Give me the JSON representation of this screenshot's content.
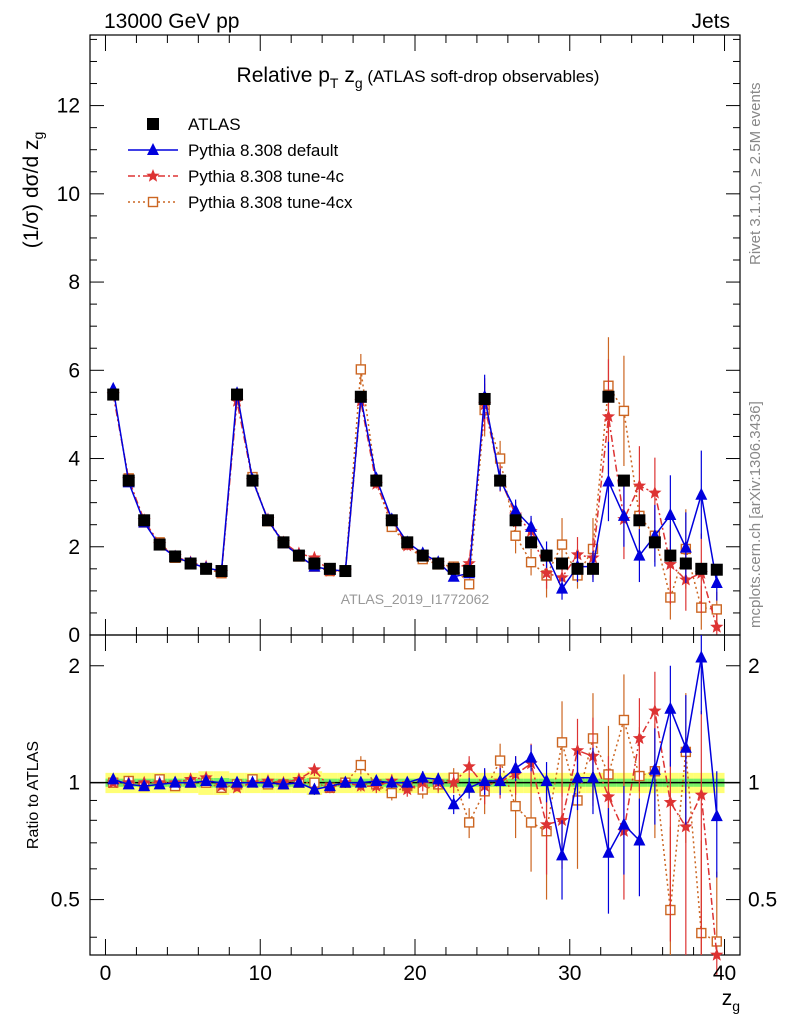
{
  "header": {
    "left": "13000 GeV pp",
    "right": "Jets"
  },
  "side_labels": {
    "rivet": "Rivet 3.1.10, ≥ 2.5M events",
    "mcplots": "mcplots.cern.ch [arXiv:1306.3436]"
  },
  "watermark": "ATLAS_2019_I1772062",
  "chart_data": [
    {
      "type": "line",
      "title_main": "Relative p",
      "title_sub_T": "T",
      "title_mid": " z",
      "title_sub_g": "g",
      "title_rest": " (ATLAS soft-drop observables)",
      "ylabel": "(1/σ) dσ/d z",
      "ylabel_sub": "g",
      "xlim": [
        -1,
        41
      ],
      "ylim": [
        0,
        13.6
      ],
      "yticks": [
        "0",
        "2",
        "4",
        "6",
        "8",
        "10",
        "12"
      ],
      "legend_position": "top-left",
      "x": [
        0.5,
        1.5,
        2.5,
        3.5,
        4.5,
        5.5,
        6.5,
        7.5,
        8.5,
        9.5,
        10.5,
        11.5,
        12.5,
        13.5,
        14.5,
        15.5,
        16.5,
        17.5,
        18.5,
        19.5,
        20.5,
        21.5,
        22.5,
        23.5,
        24.5,
        25.5,
        26.5,
        27.5,
        28.5,
        29.5,
        30.5,
        31.5,
        32.5,
        33.5,
        34.5,
        35.5,
        36.5,
        37.5,
        38.5,
        39.5
      ],
      "series": [
        {
          "name": "ATLAS",
          "color": "#000000",
          "marker": "filled-square",
          "values": [
            5.45,
            3.5,
            2.6,
            2.05,
            1.78,
            1.62,
            1.5,
            1.45,
            5.45,
            3.5,
            2.6,
            2.1,
            1.8,
            1.62,
            1.5,
            1.45,
            5.4,
            3.5,
            2.6,
            2.1,
            1.8,
            1.62,
            1.5,
            1.45,
            5.35,
            3.5,
            2.6,
            2.1,
            1.8,
            1.62,
            1.5,
            1.5,
            5.4,
            3.5,
            2.6,
            2.1,
            1.8,
            1.62,
            1.5,
            1.48
          ]
        },
        {
          "name": "Pythia 8.308 default",
          "color": "#0000dd",
          "marker": "filled-triangle",
          "values": [
            5.58,
            3.46,
            2.55,
            2.03,
            1.77,
            1.63,
            1.52,
            1.45,
            5.48,
            3.52,
            2.6,
            2.08,
            1.8,
            1.55,
            1.48,
            1.45,
            5.38,
            3.55,
            2.62,
            2.1,
            1.85,
            1.65,
            1.32,
            1.4,
            5.4,
            3.52,
            2.82,
            2.45,
            1.82,
            1.05,
            1.55,
            1.55,
            3.48,
            2.7,
            1.8,
            2.25,
            2.72,
            1.98,
            3.18,
            1.18
          ]
        },
        {
          "name": "Pythia 8.308 tune-4c",
          "color": "#dd3333",
          "marker": "star",
          "values": [
            5.45,
            3.52,
            2.6,
            2.05,
            1.78,
            1.65,
            1.55,
            1.42,
            5.3,
            3.5,
            2.62,
            2.1,
            1.85,
            1.75,
            1.45,
            1.45,
            5.3,
            3.42,
            2.6,
            2.02,
            1.8,
            1.62,
            1.5,
            1.62,
            5.22,
            3.55,
            2.72,
            2.35,
            1.4,
            1.3,
            1.82,
            1.75,
            4.95,
            2.62,
            3.38,
            3.22,
            1.6,
            1.25,
            1.4,
            0.18
          ]
        },
        {
          "name": "Pythia 8.308 tune-4cx",
          "color": "#cc6622",
          "marker": "open-square",
          "values": [
            5.45,
            3.55,
            2.55,
            2.1,
            1.75,
            1.62,
            1.5,
            1.4,
            5.42,
            3.58,
            2.58,
            2.08,
            1.78,
            1.55,
            1.45,
            1.45,
            6.02,
            3.48,
            2.45,
            2.05,
            1.72,
            1.6,
            1.55,
            1.15,
            5.1,
            4.0,
            2.25,
            1.65,
            1.35,
            2.05,
            1.35,
            1.95,
            5.65,
            5.08,
            2.7,
            2.25,
            0.85,
            1.95,
            0.62,
            0.58
          ]
        }
      ],
      "errors_default": [
        0.05,
        0.05,
        0.05,
        0.05,
        0.04,
        0.04,
        0.04,
        0.04,
        0.06,
        0.05,
        0.05,
        0.05,
        0.05,
        0.05,
        0.05,
        0.05,
        0.08,
        0.08,
        0.08,
        0.08,
        0.08,
        0.08,
        0.08,
        0.08,
        0.5,
        0.25,
        0.25,
        0.25,
        0.3,
        0.25,
        0.35,
        0.35,
        0.9,
        0.7,
        0.6,
        0.7,
        0.9,
        0.8,
        1.0,
        0.4
      ],
      "errors_4c": [
        0.05,
        0.05,
        0.05,
        0.05,
        0.04,
        0.04,
        0.04,
        0.04,
        0.06,
        0.05,
        0.05,
        0.05,
        0.05,
        0.1,
        0.05,
        0.05,
        0.1,
        0.1,
        0.1,
        0.1,
        0.1,
        0.1,
        0.1,
        0.1,
        0.6,
        0.3,
        0.3,
        0.3,
        0.35,
        0.3,
        0.4,
        0.45,
        1.3,
        0.9,
        0.9,
        0.8,
        0.9,
        0.7,
        0.9,
        0.3
      ],
      "errors_4cx": [
        0.05,
        0.05,
        0.05,
        0.05,
        0.04,
        0.04,
        0.04,
        0.04,
        0.06,
        0.05,
        0.05,
        0.05,
        0.05,
        0.05,
        0.05,
        0.05,
        0.35,
        0.12,
        0.1,
        0.1,
        0.1,
        0.1,
        0.1,
        0.1,
        0.6,
        0.4,
        0.4,
        0.3,
        0.5,
        0.6,
        0.3,
        0.7,
        1.1,
        1.25,
        0.8,
        0.6,
        0.5,
        0.9,
        0.5,
        0.4
      ]
    },
    {
      "type": "line",
      "ylabel": "Ratio to ATLAS",
      "xlabel": "z",
      "xlabel_sub": "g",
      "xticks": [
        "0",
        "10",
        "20",
        "30",
        "40"
      ],
      "yticks": [
        "0.5",
        "1",
        "2"
      ],
      "y_scale": "log",
      "ylim": [
        0.36,
        2.4
      ],
      "reference_line": 1,
      "ratio_series": [
        {
          "name": "Pythia 8.308 default",
          "values": [
            1.02,
            0.99,
            0.98,
            0.99,
            1.0,
            1.0,
            1.01,
            1.0,
            1.0,
            1.0,
            1.0,
            0.99,
            1.0,
            0.96,
            0.98,
            1.0,
            1.0,
            1.01,
            1.0,
            1.0,
            1.03,
            1.02,
            0.88,
            0.97,
            1.01,
            1.01,
            1.09,
            1.16,
            1.01,
            0.65,
            1.03,
            1.03,
            0.66,
            0.78,
            0.71,
            1.08,
            1.55,
            1.23,
            2.1,
            0.82
          ],
          "errors": [
            0.02,
            0.02,
            0.02,
            0.02,
            0.02,
            0.02,
            0.02,
            0.02,
            0.02,
            0.02,
            0.02,
            0.02,
            0.02,
            0.03,
            0.03,
            0.03,
            0.03,
            0.03,
            0.03,
            0.03,
            0.04,
            0.04,
            0.05,
            0.06,
            0.08,
            0.08,
            0.08,
            0.09,
            0.12,
            0.15,
            0.18,
            0.2,
            0.2,
            0.2,
            0.2,
            0.3,
            0.45,
            0.45,
            0.6,
            0.25
          ]
        },
        {
          "name": "Pythia 8.308 tune-4c",
          "values": [
            1.0,
            1.0,
            1.0,
            1.0,
            1.0,
            1.02,
            1.03,
            0.98,
            0.97,
            1.0,
            1.01,
            1.0,
            1.02,
            1.08,
            0.97,
            1.0,
            0.98,
            0.98,
            1.01,
            0.96,
            1.0,
            1.0,
            1.0,
            1.1,
            0.98,
            1.01,
            1.05,
            1.12,
            0.78,
            0.8,
            1.21,
            1.17,
            0.92,
            0.75,
            1.3,
            1.53,
            0.89,
            0.77,
            0.93,
            0.12
          ],
          "errors": [
            0.02,
            0.02,
            0.02,
            0.02,
            0.02,
            0.02,
            0.02,
            0.02,
            0.02,
            0.02,
            0.02,
            0.02,
            0.02,
            0.04,
            0.03,
            0.03,
            0.03,
            0.04,
            0.04,
            0.04,
            0.05,
            0.05,
            0.06,
            0.07,
            0.1,
            0.1,
            0.12,
            0.14,
            0.2,
            0.2,
            0.25,
            0.3,
            0.25,
            0.25,
            0.35,
            0.4,
            0.5,
            0.45,
            0.6,
            0.2
          ]
        },
        {
          "name": "Pythia 8.308 tune-4cx",
          "values": [
            1.0,
            1.01,
            0.98,
            1.02,
            0.98,
            1.0,
            1.0,
            0.97,
            0.99,
            1.02,
            0.99,
            0.99,
            1.0,
            1.0,
            0.97,
            1.0,
            1.11,
            0.99,
            0.94,
            0.98,
            0.96,
            0.99,
            1.03,
            0.79,
            0.95,
            1.14,
            0.87,
            0.79,
            0.75,
            1.27,
            0.9,
            1.3,
            1.05,
            1.45,
            1.04,
            1.07,
            0.47,
            1.2,
            0.41,
            0.39
          ],
          "errors": [
            0.02,
            0.02,
            0.02,
            0.02,
            0.02,
            0.02,
            0.02,
            0.02,
            0.02,
            0.02,
            0.02,
            0.02,
            0.02,
            0.03,
            0.03,
            0.03,
            0.06,
            0.04,
            0.04,
            0.04,
            0.05,
            0.05,
            0.06,
            0.07,
            0.12,
            0.12,
            0.15,
            0.2,
            0.25,
            0.35,
            0.3,
            0.4,
            0.35,
            0.45,
            0.35,
            0.35,
            0.3,
            0.5,
            0.3,
            0.2
          ]
        }
      ],
      "uncertainty_band_halfwidth": [
        0.06,
        0.06,
        0.06,
        0.06,
        0.06,
        0.06,
        0.07,
        0.07,
        0.06,
        0.06,
        0.06,
        0.06,
        0.06,
        0.07,
        0.06,
        0.06,
        0.06,
        0.06,
        0.06,
        0.06,
        0.06,
        0.06,
        0.06,
        0.06,
        0.06,
        0.06,
        0.06,
        0.06,
        0.06,
        0.06,
        0.06,
        0.06,
        0.06,
        0.06,
        0.06,
        0.06,
        0.06,
        0.06,
        0.06,
        0.06
      ]
    }
  ]
}
